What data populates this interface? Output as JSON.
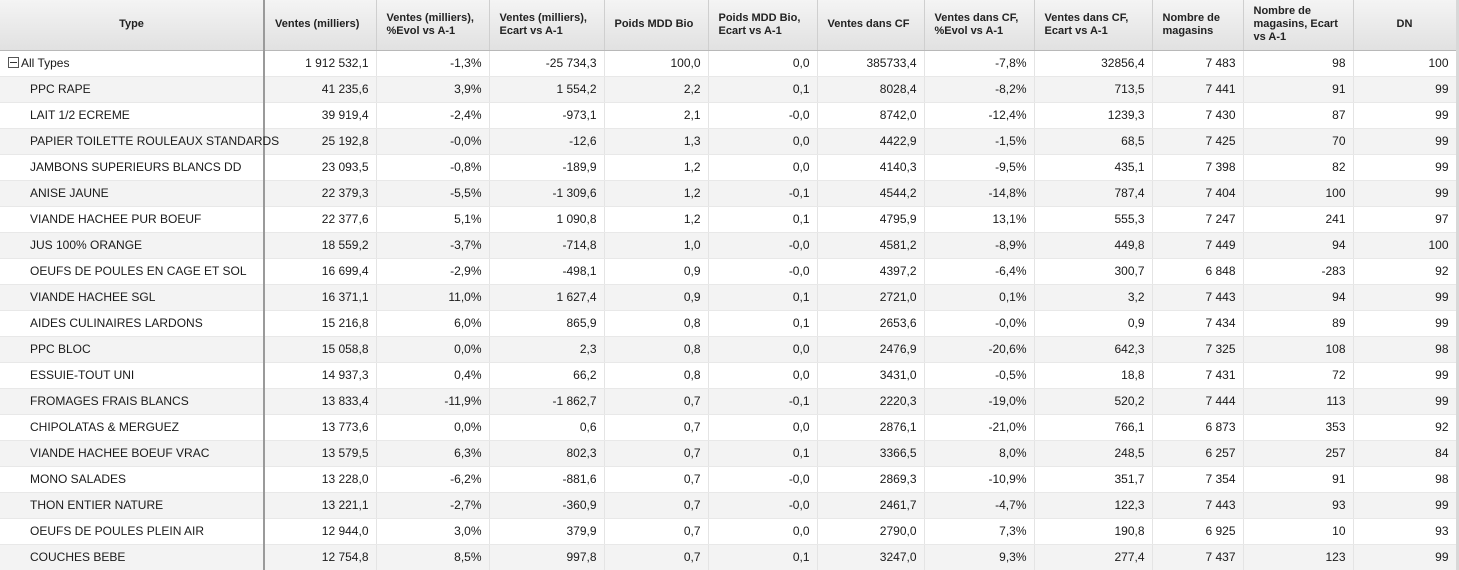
{
  "table": {
    "columns": [
      "Type",
      "Ventes (milliers)",
      "Ventes (milliers), %Evol vs A-1",
      "Ventes (milliers), Ecart vs A-1",
      "Poids MDD Bio",
      "Poids MDD Bio, Ecart vs A-1",
      "Ventes dans CF",
      "Ventes dans CF, %Evol vs A-1",
      "Ventes dans CF, Ecart vs A-1",
      "Nombre de magasins",
      "Nombre de magasins, Ecart vs A-1",
      "DN"
    ],
    "total_row": [
      "All Types",
      "1 912 532,1",
      "-1,3%",
      "-25 734,3",
      "100,0",
      "0,0",
      "385733,4",
      "-7,8%",
      "32856,4",
      "7 483",
      "98",
      "100"
    ],
    "rows": [
      [
        "PPC RAPE",
        "41 235,6",
        "3,9%",
        "1 554,2",
        "2,2",
        "0,1",
        "8028,4",
        "-8,2%",
        "713,5",
        "7 441",
        "91",
        "99"
      ],
      [
        "LAIT 1/2 ECREME",
        "39 919,4",
        "-2,4%",
        "-973,1",
        "2,1",
        "-0,0",
        "8742,0",
        "-12,4%",
        "1239,3",
        "7 430",
        "87",
        "99"
      ],
      [
        "PAPIER TOILETTE ROULEAUX STANDARDS",
        "25 192,8",
        "-0,0%",
        "-12,6",
        "1,3",
        "0,0",
        "4422,9",
        "-1,5%",
        "68,5",
        "7 425",
        "70",
        "99"
      ],
      [
        "JAMBONS SUPERIEURS BLANCS DD",
        "23 093,5",
        "-0,8%",
        "-189,9",
        "1,2",
        "0,0",
        "4140,3",
        "-9,5%",
        "435,1",
        "7 398",
        "82",
        "99"
      ],
      [
        "ANISE JAUNE",
        "22 379,3",
        "-5,5%",
        "-1 309,6",
        "1,2",
        "-0,1",
        "4544,2",
        "-14,8%",
        "787,4",
        "7 404",
        "100",
        "99"
      ],
      [
        "VIANDE HACHEE PUR BOEUF",
        "22 377,6",
        "5,1%",
        "1 090,8",
        "1,2",
        "0,1",
        "4795,9",
        "13,1%",
        "555,3",
        "7 247",
        "241",
        "97"
      ],
      [
        "JUS 100% ORANGE",
        "18 559,2",
        "-3,7%",
        "-714,8",
        "1,0",
        "-0,0",
        "4581,2",
        "-8,9%",
        "449,8",
        "7 449",
        "94",
        "100"
      ],
      [
        "OEUFS DE POULES EN CAGE ET SOL",
        "16 699,4",
        "-2,9%",
        "-498,1",
        "0,9",
        "-0,0",
        "4397,2",
        "-6,4%",
        "300,7",
        "6 848",
        "-283",
        "92"
      ],
      [
        "VIANDE HACHEE SGL",
        "16 371,1",
        "11,0%",
        "1 627,4",
        "0,9",
        "0,1",
        "2721,0",
        "0,1%",
        "3,2",
        "7 443",
        "94",
        "99"
      ],
      [
        "AIDES CULINAIRES LARDONS",
        "15 216,8",
        "6,0%",
        "865,9",
        "0,8",
        "0,1",
        "2653,6",
        "-0,0%",
        "0,9",
        "7 434",
        "89",
        "99"
      ],
      [
        "PPC BLOC",
        "15 058,8",
        "0,0%",
        "2,3",
        "0,8",
        "0,0",
        "2476,9",
        "-20,6%",
        "642,3",
        "7 325",
        "108",
        "98"
      ],
      [
        "ESSUIE-TOUT UNI",
        "14 937,3",
        "0,4%",
        "66,2",
        "0,8",
        "0,0",
        "3431,0",
        "-0,5%",
        "18,8",
        "7 431",
        "72",
        "99"
      ],
      [
        "FROMAGES FRAIS BLANCS",
        "13 833,4",
        "-11,9%",
        "-1 862,7",
        "0,7",
        "-0,1",
        "2220,3",
        "-19,0%",
        "520,2",
        "7 444",
        "113",
        "99"
      ],
      [
        "CHIPOLATAS & MERGUEZ",
        "13 773,6",
        "0,0%",
        "0,6",
        "0,7",
        "0,0",
        "2876,1",
        "-21,0%",
        "766,1",
        "6 873",
        "353",
        "92"
      ],
      [
        "VIANDE HACHEE BOEUF VRAC",
        "13 579,5",
        "6,3%",
        "802,3",
        "0,7",
        "0,1",
        "3366,5",
        "8,0%",
        "248,5",
        "6 257",
        "257",
        "84"
      ],
      [
        "MONO SALADES",
        "13 228,0",
        "-6,2%",
        "-881,6",
        "0,7",
        "-0,0",
        "2869,3",
        "-10,9%",
        "351,7",
        "7 354",
        "91",
        "98"
      ],
      [
        "THON ENTIER NATURE",
        "13 221,1",
        "-2,7%",
        "-360,9",
        "0,7",
        "-0,0",
        "2461,7",
        "-4,7%",
        "122,3",
        "7 443",
        "93",
        "99"
      ],
      [
        "OEUFS DE POULES PLEIN AIR",
        "12 944,0",
        "3,0%",
        "379,9",
        "0,7",
        "0,0",
        "2790,0",
        "7,3%",
        "190,8",
        "6 925",
        "10",
        "93"
      ],
      [
        "COUCHES BEBE",
        "12 754,8",
        "8,5%",
        "997,8",
        "0,7",
        "0,1",
        "3247,0",
        "9,3%",
        "277,4",
        "7 437",
        "123",
        "99"
      ]
    ]
  }
}
